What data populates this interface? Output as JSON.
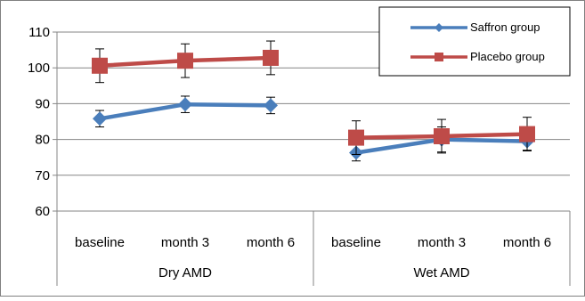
{
  "chart_data": {
    "type": "line",
    "title": "",
    "xlabel": "",
    "ylabel": "",
    "groups": [
      {
        "name": "Dry AMD",
        "categories": [
          "baseline",
          "month 3",
          "month 6"
        ]
      },
      {
        "name": "Wet AMD",
        "categories": [
          "baseline",
          "month 3",
          "month 6"
        ]
      }
    ],
    "ylim": [
      60,
      110
    ],
    "yticks": [
      60,
      70,
      80,
      90,
      100,
      110
    ],
    "grid": true,
    "legend_position": "top-right",
    "series": [
      {
        "name": "Saffron group",
        "color": "#4a7ebb",
        "marker": "diamond",
        "segments": [
          {
            "values": [
              85.8,
              89.8,
              89.5
            ],
            "errors": [
              2.3,
              2.3,
              2.3
            ]
          },
          {
            "values": [
              76.3,
              80.0,
              79.5
            ],
            "errors": [
              2.3,
              3.5,
              2.5
            ]
          }
        ]
      },
      {
        "name": "Placebo group",
        "color": "#be4b48",
        "marker": "square",
        "segments": [
          {
            "values": [
              100.6,
              102.0,
              102.8
            ],
            "errors": [
              4.7,
              4.7,
              4.7
            ]
          },
          {
            "values": [
              80.5,
              80.9,
              81.5
            ],
            "errors": [
              4.7,
              4.7,
              4.7
            ]
          }
        ]
      }
    ]
  }
}
